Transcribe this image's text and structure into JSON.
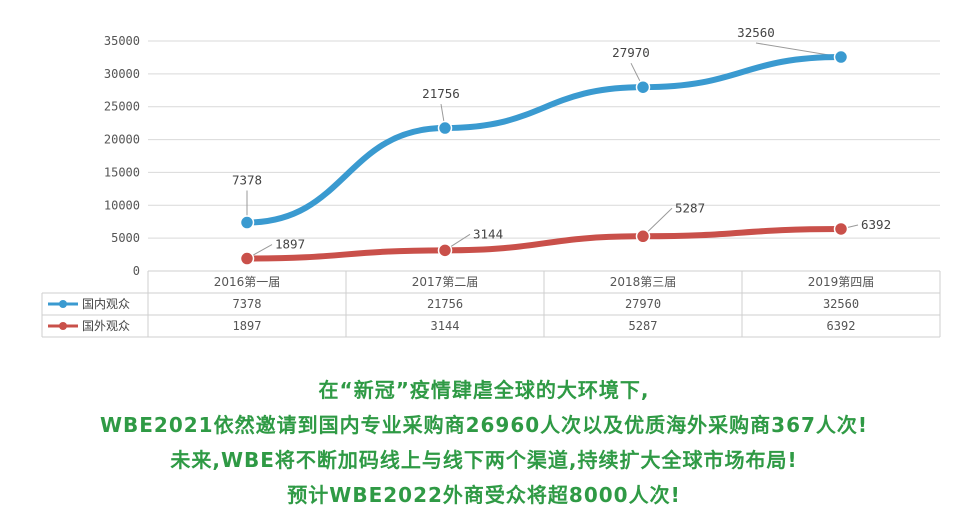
{
  "chart_data": {
    "type": "line",
    "categories": [
      "2016第一届",
      "2017第二届",
      "2018第三届",
      "2019第四届"
    ],
    "series": [
      {
        "name": "国内观众",
        "values": [
          7378,
          21756,
          27970,
          32560
        ],
        "color": "#3a9ad0"
      },
      {
        "name": "国外观众",
        "values": [
          1897,
          3144,
          5287,
          6392
        ],
        "color": "#c9504a"
      }
    ],
    "y_ticks": [
      "0",
      "5000",
      "10000",
      "15000",
      "20000",
      "25000",
      "30000",
      "35000"
    ],
    "ylim": [
      0,
      35000
    ],
    "grid": true,
    "data_table": true,
    "legend_placement": "data-table-left"
  },
  "captions": [
    "在“新冠”疫情肆虐全球的大环境下,",
    "WBE2021依然邀请到国内专业采购商26960人次以及优质海外采购商367人次!",
    "未来,WBE将不断加码线上与线下两个渠道,持续扩大全球市场布局!",
    "预计WBE2022外商受众将超8000人次!"
  ]
}
